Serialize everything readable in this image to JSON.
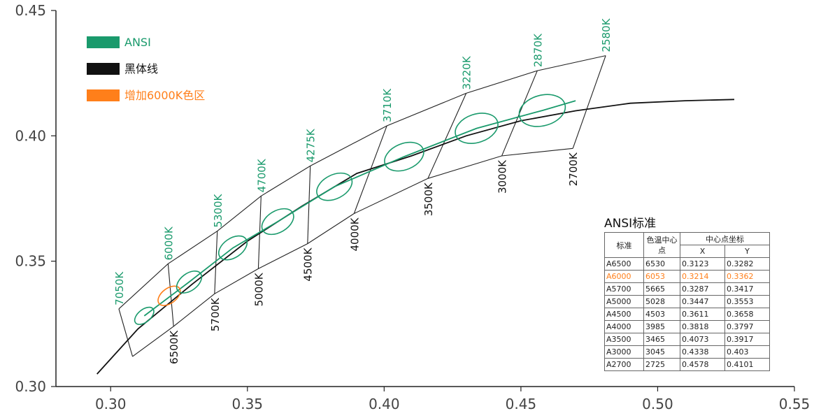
{
  "chart_data": {
    "type": "scatter",
    "title": "",
    "xlabel": "",
    "ylabel": "",
    "xlim": [
      0.28,
      0.55
    ],
    "ylim": [
      0.3,
      0.45
    ],
    "x_ticks": [
      "0.30",
      "0.35",
      "0.40",
      "0.45",
      "0.50",
      "0.55"
    ],
    "y_ticks": [
      "0.30",
      "0.35",
      "0.40",
      "0.45"
    ],
    "legend": {
      "placement": "top-left",
      "entries": [
        {
          "label": "ANSI",
          "color": "#1a9a6c"
        },
        {
          "label": "黑体线",
          "color": "#111111"
        },
        {
          "label": "增加6000K色区",
          "color": "#ff7f1a"
        }
      ]
    },
    "blackbody_curve": [
      [
        0.295,
        0.305
      ],
      [
        0.31,
        0.323
      ],
      [
        0.33,
        0.341
      ],
      [
        0.35,
        0.358
      ],
      [
        0.37,
        0.372
      ],
      [
        0.39,
        0.385
      ],
      [
        0.41,
        0.392
      ],
      [
        0.43,
        0.4
      ],
      [
        0.45,
        0.406
      ],
      [
        0.47,
        0.41
      ],
      [
        0.49,
        0.413
      ],
      [
        0.51,
        0.414
      ],
      [
        0.528,
        0.4145
      ]
    ],
    "ansi_center_curve": [
      [
        0.3123,
        0.3282
      ],
      [
        0.3287,
        0.3417
      ],
      [
        0.3447,
        0.3553
      ],
      [
        0.3611,
        0.3658
      ],
      [
        0.3818,
        0.3797
      ],
      [
        0.4073,
        0.3917
      ],
      [
        0.4338,
        0.403
      ],
      [
        0.4578,
        0.4101
      ],
      [
        0.47,
        0.414
      ]
    ],
    "band_upper": [
      [
        0.303,
        0.331
      ],
      [
        0.321,
        0.349
      ],
      [
        0.339,
        0.362
      ],
      [
        0.355,
        0.376
      ],
      [
        0.373,
        0.388
      ],
      [
        0.401,
        0.404
      ],
      [
        0.43,
        0.417
      ],
      [
        0.456,
        0.426
      ],
      [
        0.481,
        0.432
      ]
    ],
    "band_lower": [
      [
        0.308,
        0.312
      ],
      [
        0.323,
        0.324
      ],
      [
        0.338,
        0.337
      ],
      [
        0.354,
        0.347
      ],
      [
        0.372,
        0.357
      ],
      [
        0.389,
        0.369
      ],
      [
        0.416,
        0.383
      ],
      [
        0.443,
        0.392
      ],
      [
        0.469,
        0.395
      ]
    ],
    "cct_labels_top": [
      "7050K",
      "6000K",
      "5300K",
      "4700K",
      "4275K",
      "3710K",
      "3220K",
      "2870K",
      "2580K"
    ],
    "cct_labels_bottom": [
      "6500K",
      "5700K",
      "5000K",
      "4500K",
      "4000K",
      "3500K",
      "3000K",
      "2700K"
    ],
    "ansi_ellipses": [
      {
        "bin": "A6500",
        "x": 0.3123,
        "y": 0.3282
      },
      {
        "bin": "A6000",
        "x": 0.3214,
        "y": 0.3362,
        "highlight": true
      },
      {
        "bin": "A5700",
        "x": 0.3287,
        "y": 0.3417
      },
      {
        "bin": "A5000",
        "x": 0.3447,
        "y": 0.3553
      },
      {
        "bin": "A4500",
        "x": 0.3611,
        "y": 0.3658
      },
      {
        "bin": "A4000",
        "x": 0.3818,
        "y": 0.3797
      },
      {
        "bin": "A3500",
        "x": 0.4073,
        "y": 0.3917
      },
      {
        "bin": "A3000",
        "x": 0.4338,
        "y": 0.403
      },
      {
        "bin": "A2700",
        "x": 0.4578,
        "y": 0.4101
      }
    ]
  },
  "table": {
    "title": "ANSI标准",
    "headers": {
      "standard": "标准",
      "cct_center": "色温中心点",
      "center_coords": "中心点坐标",
      "x": "X",
      "y": "Y"
    },
    "rows": [
      {
        "bin": "A6500",
        "cct": "6530",
        "x": "0.3123",
        "y": "0.3282"
      },
      {
        "bin": "A6000",
        "cct": "6053",
        "x": "0.3214",
        "y": "0.3362",
        "highlight": true
      },
      {
        "bin": "A5700",
        "cct": "5665",
        "x": "0.3287",
        "y": "0.3417"
      },
      {
        "bin": "A5000",
        "cct": "5028",
        "x": "0.3447",
        "y": "0.3553"
      },
      {
        "bin": "A4500",
        "cct": "4503",
        "x": "0.3611",
        "y": "0.3658"
      },
      {
        "bin": "A4000",
        "cct": "3985",
        "x": "0.3818",
        "y": "0.3797"
      },
      {
        "bin": "A3500",
        "cct": "3465",
        "x": "0.4073",
        "y": "0.3917"
      },
      {
        "bin": "A3000",
        "cct": "3045",
        "x": "0.4338",
        "y": "0.403"
      },
      {
        "bin": "A2700",
        "cct": "2725",
        "x": "0.4578",
        "y": "0.4101"
      }
    ]
  }
}
